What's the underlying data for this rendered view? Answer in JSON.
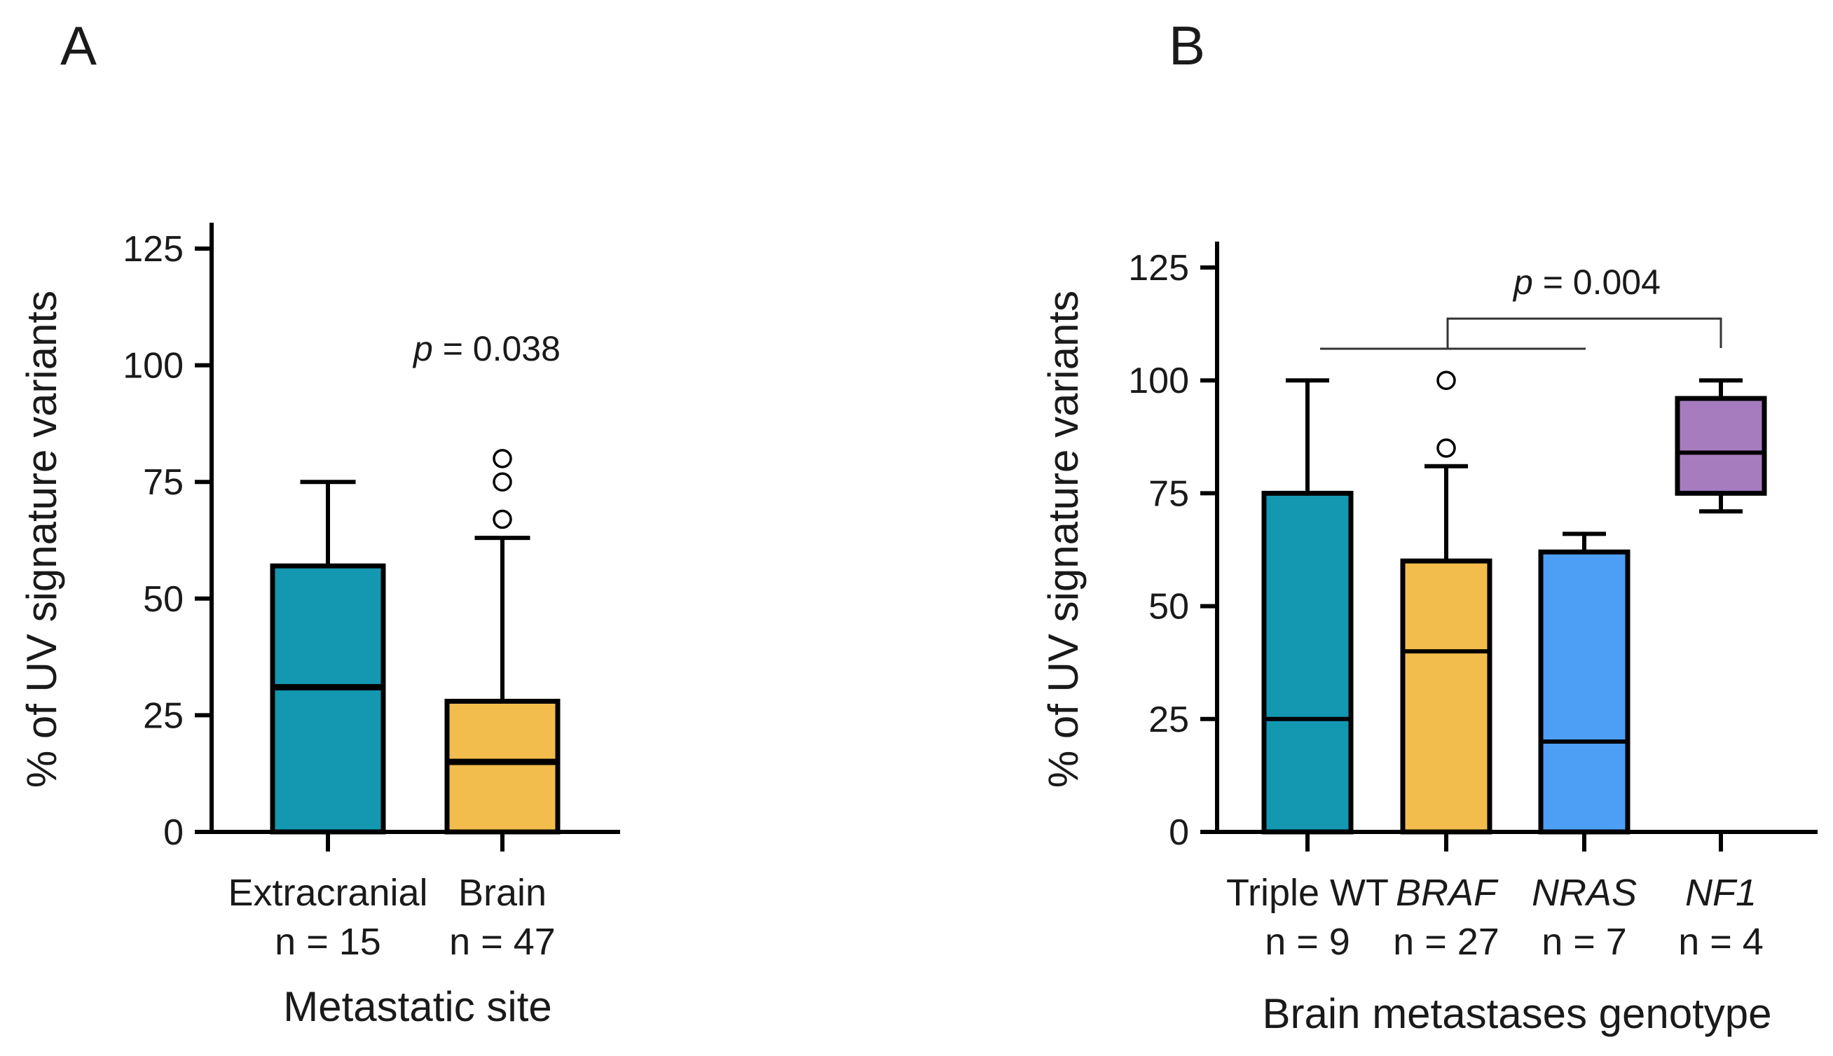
{
  "chart_data": [
    {
      "panel": "A",
      "type": "box",
      "ylabel": "% of UV signature variants",
      "xlabel": "Metastatic site",
      "ylim": [
        0,
        125
      ],
      "yticks": [
        0,
        25,
        50,
        75,
        100,
        125
      ],
      "categories": [
        {
          "label": "Extracranial",
          "n": "n = 15",
          "italic": false,
          "color": "#1497b1",
          "q1": 0,
          "median": 31,
          "q3": 57,
          "whisker_low": 0,
          "whisker_high": 75,
          "outliers": []
        },
        {
          "label": "Brain",
          "n": "n = 47",
          "italic": false,
          "color": "#f2bd4c",
          "q1": 0,
          "median": 15,
          "q3": 28,
          "whisker_low": 0,
          "whisker_high": 63,
          "outliers": [
            67,
            75,
            80
          ]
        }
      ],
      "annotation": {
        "p_label": "p",
        "p_value": "= 0.038"
      }
    },
    {
      "panel": "B",
      "type": "box",
      "ylabel": "% of UV signature variants",
      "xlabel": "Brain metastases genotype",
      "ylim": [
        0,
        125
      ],
      "yticks": [
        0,
        25,
        50,
        75,
        100,
        125
      ],
      "categories": [
        {
          "label": "Triple WT",
          "n": "n = 9",
          "italic": false,
          "color": "#1497b1",
          "q1": 0,
          "median": 25,
          "q3": 75,
          "whisker_low": 0,
          "whisker_high": 100,
          "outliers": []
        },
        {
          "label": "BRAF",
          "n": "n = 27",
          "italic": true,
          "color": "#f2bd4c",
          "q1": 0,
          "median": 40,
          "q3": 60,
          "whisker_low": 0,
          "whisker_high": 81,
          "outliers": [
            85,
            100
          ]
        },
        {
          "label": "NRAS",
          "n": "n = 7",
          "italic": true,
          "color": "#4d9ef5",
          "q1": 0,
          "median": 20,
          "q3": 62,
          "whisker_low": 0,
          "whisker_high": 66,
          "outliers": []
        },
        {
          "label": "NF1",
          "n": "n = 4",
          "italic": true,
          "color": "#a67cbf",
          "q1": 75,
          "median": 84,
          "q3": 96,
          "whisker_low": 71,
          "whisker_high": 100,
          "outliers": []
        }
      ],
      "annotation": {
        "p_label": "p",
        "p_value": "= 0.004"
      }
    }
  ]
}
